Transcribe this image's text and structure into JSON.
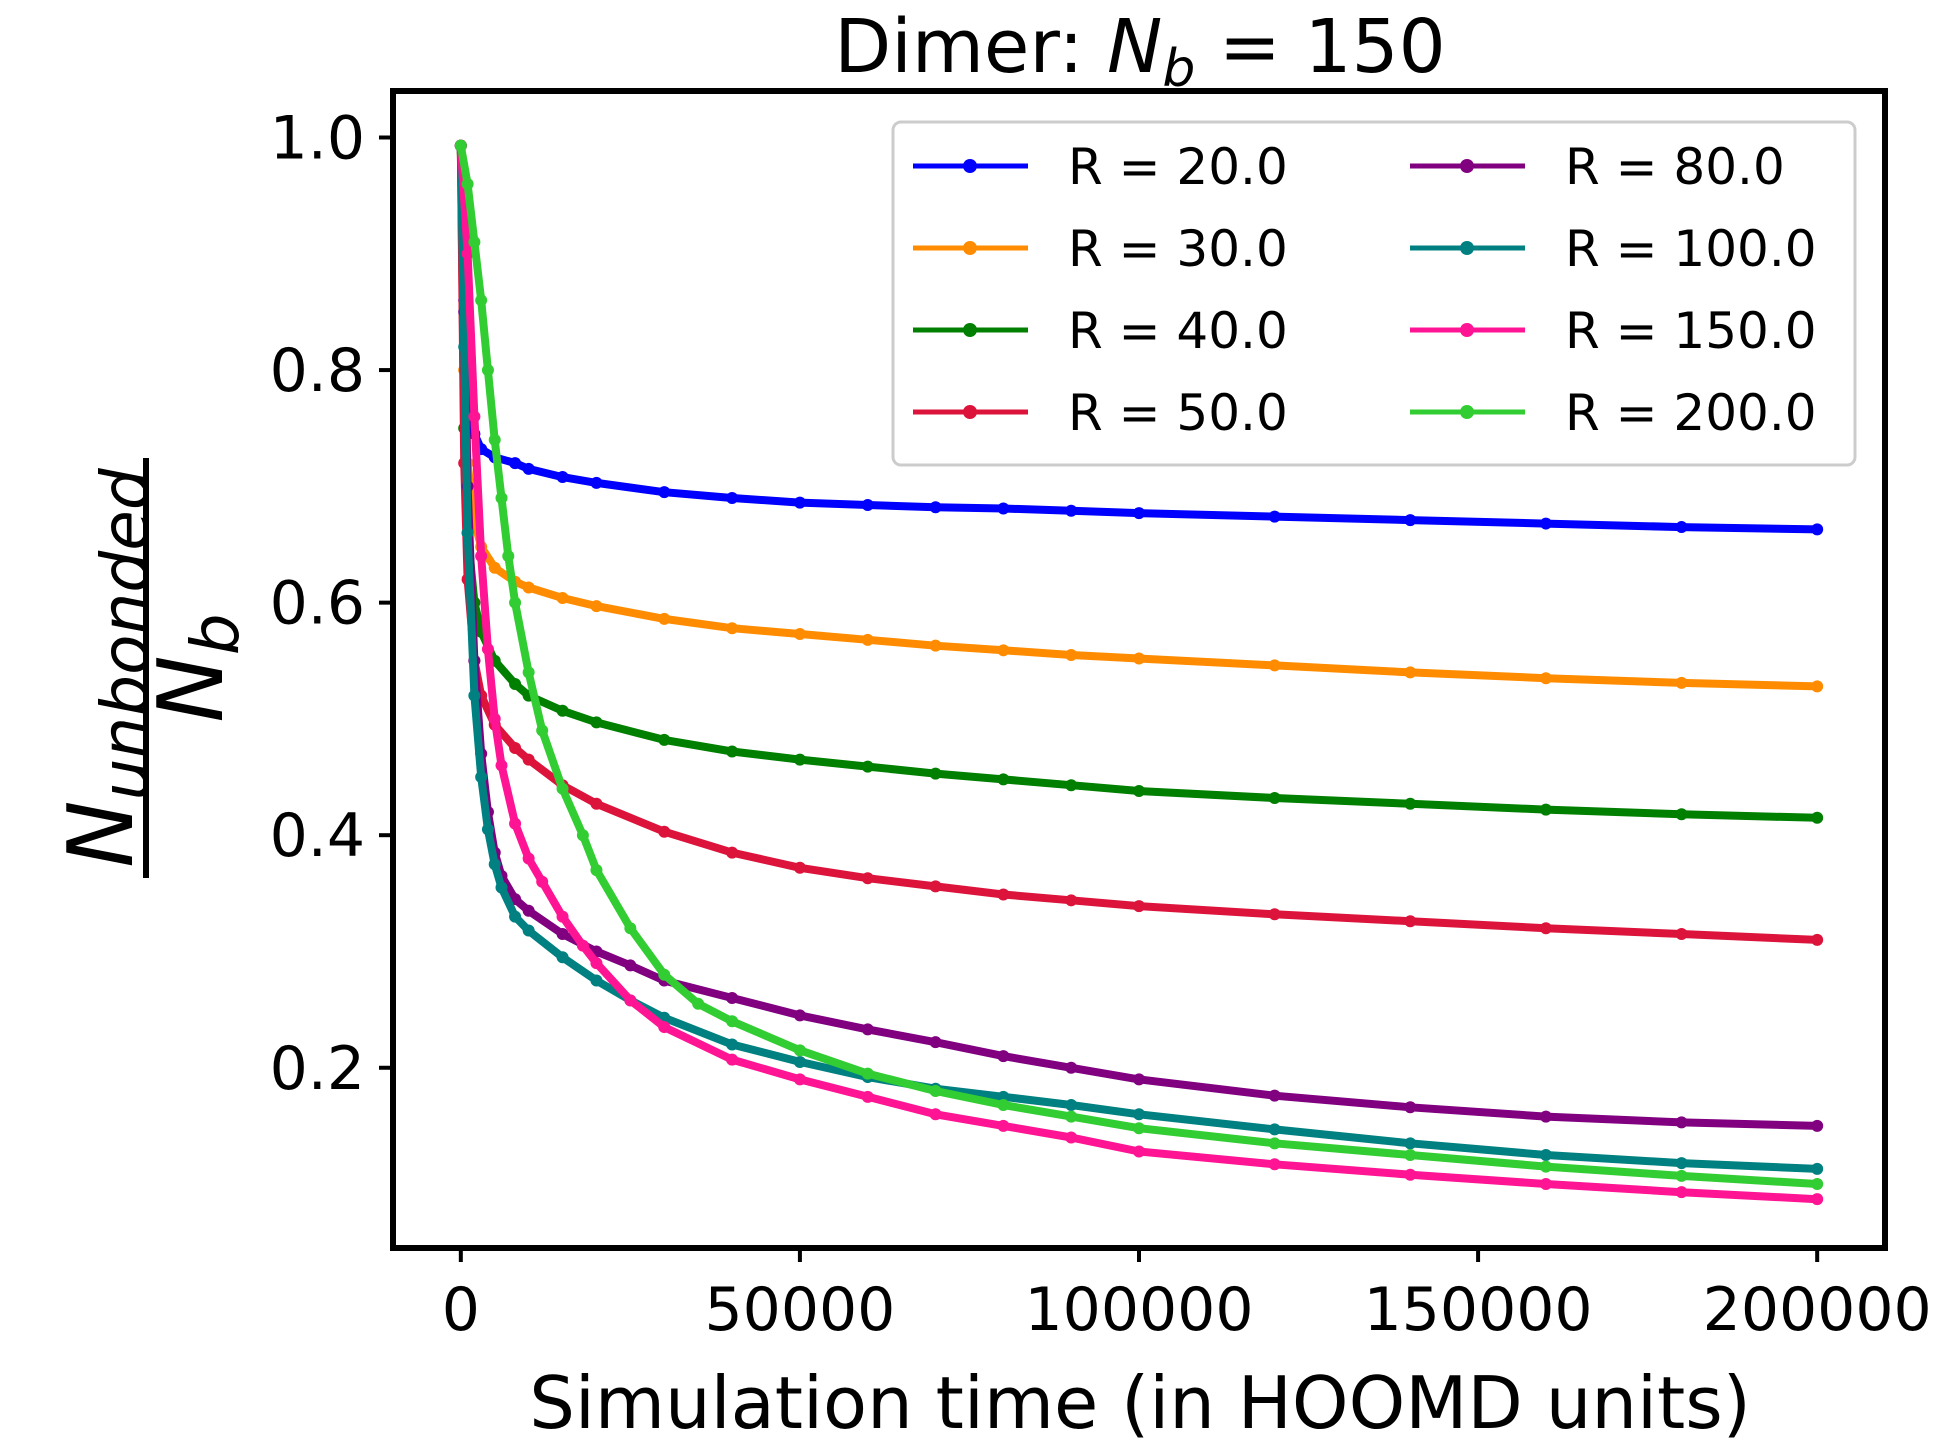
{
  "chart_data": {
    "type": "line",
    "title": {
      "prefix": "Dimer: ",
      "var": "N",
      "sub": "b",
      "suffix": " = 150"
    },
    "xlabel": "Simulation time (in HOOMD units)",
    "ylabel": {
      "num_main": "N",
      "num_sub": "unbonded",
      "den_main": "N",
      "den_sub": "b"
    },
    "xlim": [
      -10000,
      210000
    ],
    "ylim": [
      0.045,
      1.04
    ],
    "x_ticks": [
      0,
      50000,
      100000,
      150000,
      200000
    ],
    "x_tick_labels": [
      "0",
      "50000",
      "100000",
      "150000",
      "200000"
    ],
    "y_ticks": [
      0.2,
      0.4,
      0.6,
      0.8,
      1.0
    ],
    "y_tick_labels": [
      "0.2",
      "0.4",
      "0.6",
      "0.8",
      "1.0"
    ],
    "legend_position": "top-right",
    "legend_columns": 2,
    "grid": false,
    "series": [
      {
        "name": "R = 20.0",
        "color": "#0000ff",
        "x": [
          0,
          500,
          1000,
          2000,
          3000,
          5000,
          8000,
          10000,
          15000,
          20000,
          30000,
          40000,
          50000,
          60000,
          70000,
          80000,
          90000,
          100000,
          120000,
          140000,
          160000,
          180000,
          200000
        ],
        "y": [
          0.993,
          0.86,
          0.79,
          0.745,
          0.732,
          0.725,
          0.72,
          0.715,
          0.708,
          0.703,
          0.695,
          0.69,
          0.686,
          0.684,
          0.682,
          0.681,
          0.679,
          0.677,
          0.674,
          0.671,
          0.668,
          0.665,
          0.663
        ]
      },
      {
        "name": "R = 30.0",
        "color": "#ff8c00",
        "x": [
          0,
          500,
          1000,
          2000,
          3000,
          5000,
          8000,
          10000,
          15000,
          20000,
          30000,
          40000,
          50000,
          60000,
          70000,
          80000,
          90000,
          100000,
          120000,
          140000,
          160000,
          180000,
          200000
        ],
        "y": [
          0.993,
          0.8,
          0.72,
          0.67,
          0.648,
          0.63,
          0.618,
          0.613,
          0.604,
          0.597,
          0.586,
          0.578,
          0.573,
          0.568,
          0.563,
          0.559,
          0.555,
          0.552,
          0.546,
          0.54,
          0.535,
          0.531,
          0.528
        ]
      },
      {
        "name": "R = 40.0",
        "color": "#007f00",
        "x": [
          0,
          500,
          1000,
          2000,
          3000,
          5000,
          8000,
          10000,
          15000,
          20000,
          30000,
          40000,
          50000,
          60000,
          70000,
          80000,
          90000,
          100000,
          120000,
          140000,
          160000,
          180000,
          200000
        ],
        "y": [
          0.993,
          0.75,
          0.66,
          0.6,
          0.575,
          0.55,
          0.53,
          0.52,
          0.507,
          0.497,
          0.482,
          0.472,
          0.465,
          0.459,
          0.453,
          0.448,
          0.443,
          0.438,
          0.432,
          0.427,
          0.422,
          0.418,
          0.415
        ]
      },
      {
        "name": "R = 50.0",
        "color": "#dc143c",
        "x": [
          0,
          500,
          1000,
          2000,
          3000,
          5000,
          8000,
          10000,
          15000,
          20000,
          30000,
          40000,
          50000,
          60000,
          70000,
          80000,
          90000,
          100000,
          120000,
          140000,
          160000,
          180000,
          200000
        ],
        "y": [
          0.993,
          0.72,
          0.62,
          0.55,
          0.52,
          0.495,
          0.475,
          0.465,
          0.443,
          0.427,
          0.403,
          0.385,
          0.372,
          0.363,
          0.356,
          0.349,
          0.344,
          0.339,
          0.332,
          0.326,
          0.32,
          0.315,
          0.31
        ]
      },
      {
        "name": "R = 80.0",
        "color": "#800080",
        "x": [
          0,
          500,
          1000,
          2000,
          3000,
          4000,
          5000,
          6000,
          8000,
          10000,
          15000,
          20000,
          25000,
          30000,
          40000,
          50000,
          60000,
          70000,
          80000,
          90000,
          100000,
          120000,
          140000,
          160000,
          180000,
          200000
        ],
        "y": [
          0.993,
          0.85,
          0.7,
          0.55,
          0.47,
          0.42,
          0.385,
          0.365,
          0.345,
          0.335,
          0.315,
          0.3,
          0.288,
          0.275,
          0.26,
          0.245,
          0.233,
          0.222,
          0.21,
          0.2,
          0.19,
          0.176,
          0.166,
          0.158,
          0.153,
          0.15
        ]
      },
      {
        "name": "R = 100.0",
        "color": "#008080",
        "x": [
          0,
          500,
          1000,
          2000,
          3000,
          4000,
          5000,
          6000,
          8000,
          10000,
          15000,
          20000,
          25000,
          30000,
          40000,
          50000,
          60000,
          70000,
          80000,
          90000,
          100000,
          120000,
          140000,
          160000,
          180000,
          200000
        ],
        "y": [
          0.993,
          0.82,
          0.66,
          0.52,
          0.45,
          0.405,
          0.375,
          0.355,
          0.33,
          0.318,
          0.295,
          0.275,
          0.258,
          0.243,
          0.22,
          0.205,
          0.192,
          0.182,
          0.175,
          0.168,
          0.16,
          0.147,
          0.135,
          0.125,
          0.118,
          0.113
        ]
      },
      {
        "name": "R = 150.0",
        "color": "#ff1493",
        "x": [
          0,
          1000,
          2000,
          3000,
          4000,
          5000,
          6000,
          8000,
          10000,
          12000,
          15000,
          18000,
          20000,
          25000,
          30000,
          40000,
          50000,
          60000,
          70000,
          80000,
          90000,
          100000,
          120000,
          140000,
          160000,
          180000,
          200000
        ],
        "y": [
          0.993,
          0.9,
          0.76,
          0.64,
          0.56,
          0.5,
          0.46,
          0.41,
          0.38,
          0.36,
          0.33,
          0.305,
          0.29,
          0.258,
          0.235,
          0.207,
          0.19,
          0.175,
          0.16,
          0.15,
          0.14,
          0.128,
          0.117,
          0.108,
          0.1,
          0.093,
          0.087
        ]
      },
      {
        "name": "R = 200.0",
        "color": "#32cd32",
        "x": [
          0,
          1000,
          2000,
          3000,
          4000,
          5000,
          6000,
          7000,
          8000,
          10000,
          12000,
          15000,
          18000,
          20000,
          25000,
          30000,
          35000,
          40000,
          50000,
          60000,
          70000,
          80000,
          90000,
          100000,
          120000,
          140000,
          160000,
          180000,
          200000
        ],
        "y": [
          0.993,
          0.96,
          0.91,
          0.86,
          0.8,
          0.74,
          0.69,
          0.64,
          0.6,
          0.54,
          0.49,
          0.44,
          0.4,
          0.37,
          0.32,
          0.28,
          0.255,
          0.24,
          0.215,
          0.195,
          0.18,
          0.168,
          0.158,
          0.148,
          0.135,
          0.125,
          0.115,
          0.107,
          0.1
        ]
      }
    ]
  }
}
